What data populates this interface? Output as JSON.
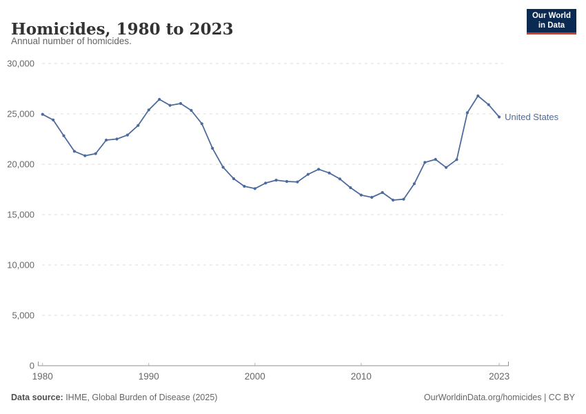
{
  "header": {
    "title": "Homicides, 1980 to 2023",
    "subtitle": "Annual number of homicides.",
    "logo": {
      "line1": "Our World",
      "line2": "in Data"
    }
  },
  "footer": {
    "source_label": "Data source:",
    "source_value": " IHME, Global Burden of Disease (2025)",
    "credit": "OurWorldinData.org/homicides | CC BY"
  },
  "colors": {
    "line": "#4C6A9C",
    "grid": "#dddddd",
    "axis": "#8f8f8f",
    "minor_tick": "#b3b3b3",
    "tick_text": "#666666",
    "logo_bg": "#0b2a51",
    "logo_stripe": "#d13c27"
  },
  "chart_data": {
    "type": "line",
    "title": "Homicides, 1980 to 2023",
    "subtitle": "Annual number of homicides.",
    "x": [
      1980,
      1981,
      1982,
      1983,
      1984,
      1985,
      1986,
      1987,
      1988,
      1989,
      1990,
      1991,
      1992,
      1993,
      1994,
      1995,
      1996,
      1997,
      1998,
      1999,
      2000,
      2001,
      2002,
      2003,
      2004,
      2005,
      2006,
      2007,
      2008,
      2009,
      2010,
      2011,
      2012,
      2013,
      2014,
      2015,
      2016,
      2017,
      2018,
      2019,
      2020,
      2021,
      2022,
      2023
    ],
    "series": [
      {
        "name": "United States",
        "color": "#4C6A9C",
        "values": [
          24950,
          24400,
          22830,
          21280,
          20840,
          21050,
          22400,
          22500,
          22900,
          23850,
          25390,
          26440,
          25840,
          26030,
          25340,
          24020,
          21580,
          19700,
          18560,
          17810,
          17580,
          18130,
          18420,
          18290,
          18240,
          18990,
          19500,
          19130,
          18540,
          17670,
          16940,
          16710,
          17190,
          16440,
          16530,
          18060,
          20180,
          20480,
          19680,
          20460,
          25110,
          26780,
          25910,
          24690
        ]
      }
    ],
    "ylim": [
      0,
      30000
    ],
    "yticks": [
      0,
      5000,
      10000,
      15000,
      20000,
      25000,
      30000
    ],
    "ytick_labels": [
      "0",
      "5,000",
      "10,000",
      "15,000",
      "20,000",
      "25,000",
      "30,000"
    ],
    "xticks": [
      1980,
      1990,
      2000,
      2010,
      2023
    ],
    "grid": "horizontal-dashed",
    "legend": "line-end-label"
  }
}
